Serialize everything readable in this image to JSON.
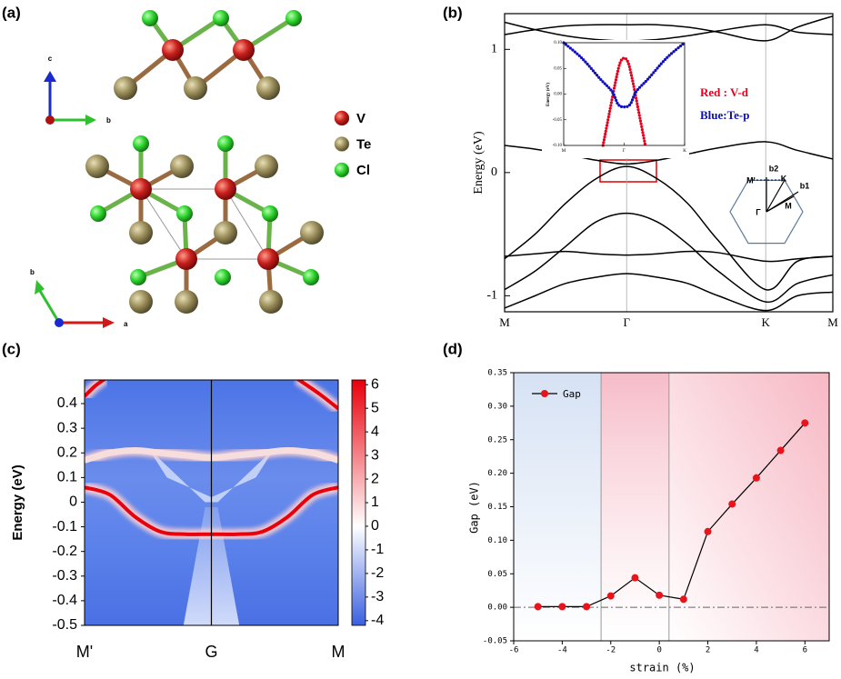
{
  "structure": {
    "panel": "(a)",
    "legend": [
      {
        "name": "V",
        "color": "#c8201c"
      },
      {
        "name": "Te",
        "color": "#9c8f5c"
      },
      {
        "name": "Cl",
        "color": "#2fd42f"
      }
    ],
    "axes_top": [
      "c",
      "b"
    ],
    "axes_bottom": [
      "b",
      "a"
    ]
  },
  "chart_data": [
    {
      "type": "line",
      "panel": "(b)",
      "ylabel": "Energy (eV)",
      "xlim": [
        0,
        2.69
      ],
      "xticks": [
        {
          "value": 0,
          "label": "M"
        },
        {
          "value": 1,
          "label": "Γ"
        },
        {
          "value": 2.14,
          "label": "K"
        },
        {
          "value": 2.69,
          "label": "M"
        }
      ],
      "ylim": [
        -1.13,
        1.29
      ],
      "yticks": [
        -1,
        0,
        1
      ],
      "x": [
        0,
        0.25,
        0.5,
        0.75,
        1,
        1.25,
        1.5,
        1.75,
        2.14,
        2.4,
        2.69
      ],
      "series": [
        {
          "color": "#000000",
          "values": [
            1.22,
            1.16,
            1.11,
            1.08,
            1.07,
            1.08,
            1.11,
            1.15,
            1.2,
            1.14,
            1.12
          ]
        },
        {
          "color": "#000000",
          "values": [
            1.12,
            1.16,
            1.19,
            1.2,
            1.2,
            1.2,
            1.18,
            1.14,
            1.07,
            1.18,
            1.27
          ]
        },
        {
          "color": "#000000",
          "values": [
            0.22,
            0.19,
            0.15,
            0.1,
            0.07,
            0.1,
            0.15,
            0.2,
            0.25,
            0.18,
            0.11
          ]
        },
        {
          "color": "#000000",
          "values": [
            -0.7,
            -0.5,
            -0.25,
            -0.05,
            0.05,
            -0.05,
            -0.25,
            -0.55,
            -0.95,
            -0.72,
            -0.68
          ]
        },
        {
          "color": "#000000",
          "values": [
            -0.95,
            -0.8,
            -0.6,
            -0.4,
            -0.33,
            -0.4,
            -0.58,
            -0.8,
            -1.05,
            -0.9,
            -0.83
          ]
        },
        {
          "color": "#000000",
          "values": [
            -0.68,
            -0.66,
            -0.64,
            -0.66,
            -0.67,
            -0.66,
            -0.64,
            -0.65,
            -0.72,
            -0.7,
            -0.68
          ]
        },
        {
          "color": "#000000",
          "values": [
            -1.1,
            -1.0,
            -0.9,
            -0.85,
            -0.82,
            -0.85,
            -0.9,
            -1.0,
            -1.12,
            -1.0,
            -0.97
          ]
        }
      ],
      "annotations": [
        {
          "text": "Red : V-d",
          "color": "#e8001c"
        },
        {
          "text": "Blue:Te-p",
          "color": "#1010b0"
        }
      ],
      "bz_labels": [
        "M'",
        "K",
        "Γ",
        "M",
        "b2",
        "b1"
      ],
      "inset": {
        "ylabel": "Energy (eV)",
        "xlim": [
          -1,
          1
        ],
        "xticks": [
          {
            "value": -1,
            "label": "M"
          },
          {
            "value": 0,
            "label": "Γ"
          },
          {
            "value": 1,
            "label": "K"
          }
        ],
        "ylim": [
          -0.1,
          0.1
        ],
        "yticks": [
          {
            "value": 0.1,
            "label": "0.10"
          },
          0.05,
          {
            "value": 0,
            "label": "0.00"
          },
          -0.05,
          {
            "value": -0.1,
            "label": "-0.10"
          }
        ],
        "series": [
          {
            "color": "#e8001c",
            "x": [
              -0.35,
              -0.25,
              -0.15,
              -0.07,
              0,
              0.07,
              0.15,
              0.25,
              0.35
            ],
            "values": [
              -0.1,
              -0.04,
              0.02,
              0.06,
              0.07,
              0.06,
              0.02,
              -0.04,
              -0.1
            ]
          },
          {
            "color": "#1010c0",
            "x": [
              -1,
              -0.7,
              -0.4,
              -0.2,
              -0.1,
              0,
              0.1,
              0.2,
              0.4,
              0.7,
              1
            ],
            "values": [
              0.1,
              0.07,
              0.03,
              0.005,
              -0.02,
              -0.025,
              -0.02,
              0.005,
              0.03,
              0.07,
              0.1
            ]
          }
        ]
      }
    },
    {
      "type": "heatmap",
      "panel": "(c)",
      "ylabel": "Energy (eV)",
      "xlim": [
        0,
        2
      ],
      "xticks": [
        {
          "value": 0,
          "label": "M'"
        },
        {
          "value": 1,
          "label": "G"
        },
        {
          "value": 2,
          "label": "M"
        }
      ],
      "ylim": [
        -0.5,
        0.496
      ],
      "yticks": [
        0.4,
        0.3,
        0.2,
        0.1,
        0,
        -0.1,
        -0.2,
        -0.3,
        -0.4,
        -0.5
      ],
      "clim": [
        -4.2,
        6.2
      ],
      "cticks": [
        6,
        5,
        4,
        3,
        2,
        1,
        0,
        -1,
        -2,
        -3,
        -4
      ],
      "colormap": [
        "#3a5fe0",
        "#ffffff",
        "#e8000b"
      ],
      "series": [
        {
          "color": "#e8000b",
          "x": [
            0,
            0.2,
            0.4,
            0.6,
            0.8,
            1,
            1.2,
            1.4,
            1.6,
            1.8,
            2
          ],
          "values": [
            0.06,
            0.03,
            -0.06,
            -0.12,
            -0.13,
            -0.13,
            -0.13,
            -0.12,
            -0.06,
            0.03,
            0.06
          ]
        },
        {
          "color": "#e8000b",
          "x": [
            0,
            0.08,
            0.16
          ],
          "values": [
            0.43,
            0.47,
            0.5
          ]
        },
        {
          "color": "#e8000b",
          "x": [
            1.68,
            1.85,
            2
          ],
          "values": [
            0.5,
            0.44,
            0.38
          ]
        },
        {
          "color": "#f7dede",
          "x": [
            0,
            0.2,
            0.4,
            0.6,
            0.8,
            1,
            1.2,
            1.4,
            1.6,
            1.8,
            2
          ],
          "values": [
            0.17,
            0.2,
            0.21,
            0.2,
            0.19,
            0.18,
            0.19,
            0.2,
            0.21,
            0.2,
            0.17
          ]
        }
      ]
    },
    {
      "type": "line",
      "panel": "(d)",
      "xlabel": "strain (%)",
      "ylabel": "Gap (eV)",
      "x": [
        -5,
        -4,
        -3,
        -2,
        -1,
        0,
        1,
        2,
        3,
        4,
        5,
        6
      ],
      "series": [
        {
          "name": "Gap",
          "color": "#e8141c",
          "values": [
            0.001,
            0.001,
            0.001,
            0.017,
            0.044,
            0.018,
            0.012,
            0.113,
            0.154,
            0.193,
            0.234,
            0.275
          ]
        }
      ],
      "markers": true,
      "legend": "upper left",
      "xlim": [
        -6,
        7
      ],
      "xticks": [
        -6,
        -4,
        -2,
        0,
        2,
        4,
        6
      ],
      "ylim": [
        -0.05,
        0.35
      ],
      "yticks": [
        -0.05,
        {
          "value": 0,
          "label": "0.00"
        },
        0.05,
        {
          "value": 0.1,
          "label": "0.10"
        },
        0.15,
        {
          "value": 0.2,
          "label": "0.20"
        },
        0.25,
        {
          "value": 0.3,
          "label": "0.30"
        },
        0.35
      ],
      "reference_line": 0,
      "regions": [
        {
          "from": -6,
          "to": -2.4,
          "color": "#d6e2f4"
        },
        {
          "from": -2.4,
          "to": 0.4,
          "color": "#f6bcc8"
        },
        {
          "from": 0.4,
          "to": 7,
          "color": "#f7b8c4"
        }
      ]
    }
  ]
}
